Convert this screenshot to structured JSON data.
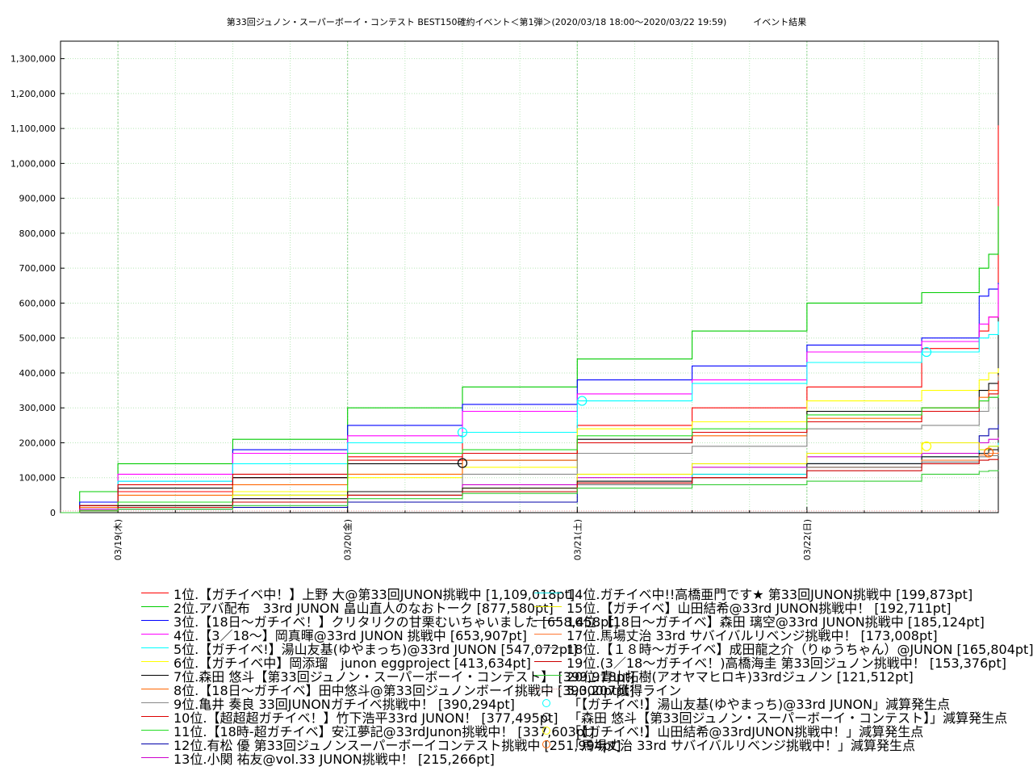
{
  "chart_data": {
    "type": "line",
    "title": "第33回ジュノン・スーパーボーイ・コンテスト BEST150確約イベント＜第1弾＞(2020/03/18 18:00〜2020/03/22 19:59)　　　イベント結果",
    "xlabel": "",
    "ylabel": "",
    "x_range": [
      "2020-03-18 18:00",
      "2020-03-22 20:00"
    ],
    "ylim": [
      0,
      1350000
    ],
    "yticks": [
      0,
      100000,
      200000,
      300000,
      400000,
      500000,
      600000,
      700000,
      800000,
      900000,
      1000000,
      1100000,
      1200000,
      1300000
    ],
    "ytick_labels": [
      "0",
      "100,000",
      "200,000",
      "300,000",
      "400,000",
      "500,000",
      "600,000",
      "700,000",
      "800,000",
      "900,000",
      "1,000,000",
      "1,100,000",
      "1,200,000",
      "1,300,000"
    ],
    "xticks": [
      {
        "x": "2020-03-19 00:00",
        "label": "03/19(木)"
      },
      {
        "x": "2020-03-20 00:00",
        "label": "03/20(金)"
      },
      {
        "x": "2020-03-21 00:00",
        "label": "03/21(土)"
      },
      {
        "x": "2020-03-22 00:00",
        "label": "03/22(日)"
      }
    ],
    "grid": true,
    "legend_position": "bottom",
    "series": [
      {
        "name": "1位.【ガチイベ中！】上野 大@第33回JUNON挑戦中 [1,109,018pt]",
        "color": "#ff0000",
        "x": [
          "2020-03-18 18:00",
          "2020-03-18 20:00",
          "2020-03-19 00:00",
          "2020-03-19 12:00",
          "2020-03-20 00:00",
          "2020-03-20 12:00",
          "2020-03-21 00:00",
          "2020-03-21 12:00",
          "2020-03-22 00:00",
          "2020-03-22 12:00",
          "2020-03-22 18:00",
          "2020-03-22 19:00",
          "2020-03-22 20:00"
        ],
        "y": [
          0,
          20000,
          60000,
          100000,
          160000,
          230000,
          250000,
          300000,
          360000,
          470000,
          520000,
          560000,
          1109018
        ]
      },
      {
        "name": "2位.アバ配布　33rd JUNON 畠山直人のなおトーク [877,580pt]",
        "color": "#00cc00",
        "x": [
          "2020-03-18 18:00",
          "2020-03-18 20:00",
          "2020-03-19 00:00",
          "2020-03-19 12:00",
          "2020-03-20 00:00",
          "2020-03-20 12:00",
          "2020-03-21 00:00",
          "2020-03-21 12:00",
          "2020-03-22 00:00",
          "2020-03-22 12:00",
          "2020-03-22 18:00",
          "2020-03-22 19:00",
          "2020-03-22 20:00"
        ],
        "y": [
          0,
          60000,
          140000,
          210000,
          300000,
          360000,
          440000,
          520000,
          600000,
          630000,
          700000,
          740000,
          877580
        ]
      },
      {
        "name": "3位.【18日〜ガチイベ！】クリタリクの甘栗むいちゃいました [658,458pt]",
        "color": "#0000ff",
        "x": [
          "2020-03-18 18:00",
          "2020-03-18 20:00",
          "2020-03-19 00:00",
          "2020-03-19 12:00",
          "2020-03-20 00:00",
          "2020-03-20 12:00",
          "2020-03-21 00:00",
          "2020-03-21 12:00",
          "2020-03-22 00:00",
          "2020-03-22 12:00",
          "2020-03-22 18:00",
          "2020-03-22 19:00",
          "2020-03-22 20:00"
        ],
        "y": [
          0,
          30000,
          90000,
          180000,
          250000,
          310000,
          380000,
          420000,
          480000,
          500000,
          620000,
          640000,
          658458
        ]
      },
      {
        "name": "4位.【3／18〜】岡真暉@33rd JUNON 挑戦中 [653,907pt]",
        "color": "#ff00ff",
        "x": [
          "2020-03-18 18:00",
          "2020-03-18 20:00",
          "2020-03-19 00:00",
          "2020-03-19 12:00",
          "2020-03-20 00:00",
          "2020-03-20 12:00",
          "2020-03-21 00:00",
          "2020-03-21 12:00",
          "2020-03-22 00:00",
          "2020-03-22 12:00",
          "2020-03-22 18:00",
          "2020-03-22 19:00",
          "2020-03-22 20:00"
        ],
        "y": [
          0,
          20000,
          110000,
          170000,
          220000,
          290000,
          340000,
          380000,
          460000,
          490000,
          540000,
          560000,
          653907
        ]
      },
      {
        "name": "5位.【ガチイベ!】湯山友基(ゆやまっち)@33rd JUNON [547,072pt]",
        "color": "#00ffff",
        "x": [
          "2020-03-18 18:00",
          "2020-03-18 20:00",
          "2020-03-19 00:00",
          "2020-03-19 12:00",
          "2020-03-20 00:00",
          "2020-03-20 12:00",
          "2020-03-21 00:00",
          "2020-03-21 12:00",
          "2020-03-22 00:00",
          "2020-03-22 12:00",
          "2020-03-22 18:00",
          "2020-03-22 19:00",
          "2020-03-22 20:00"
        ],
        "y": [
          0,
          20000,
          90000,
          140000,
          200000,
          230000,
          320000,
          370000,
          430000,
          460000,
          500000,
          510000,
          547072
        ]
      },
      {
        "name": "6位.【ガチイベ中】岡添瑠　junon eggproject [413,634pt]",
        "color": "#ffff00",
        "x": [
          "2020-03-18 18:00",
          "2020-03-18 20:00",
          "2020-03-19 00:00",
          "2020-03-19 12:00",
          "2020-03-20 00:00",
          "2020-03-20 12:00",
          "2020-03-21 00:00",
          "2020-03-21 12:00",
          "2020-03-22 00:00",
          "2020-03-22 12:00",
          "2020-03-22 18:00",
          "2020-03-22 19:00",
          "2020-03-22 20:00"
        ],
        "y": [
          0,
          10000,
          30000,
          60000,
          100000,
          130000,
          240000,
          260000,
          320000,
          350000,
          380000,
          400000,
          413634
        ]
      },
      {
        "name": "7位.森田 悠斗【第33回ジュノン・スーパーボーイ・コンテスト】 [399,918pt]",
        "color": "#000000",
        "x": [
          "2020-03-18 18:00",
          "2020-03-18 20:00",
          "2020-03-19 00:00",
          "2020-03-19 12:00",
          "2020-03-20 00:00",
          "2020-03-20 12:00",
          "2020-03-21 00:00",
          "2020-03-21 12:00",
          "2020-03-22 00:00",
          "2020-03-22 12:00",
          "2020-03-22 18:00",
          "2020-03-22 19:00",
          "2020-03-22 20:00"
        ],
        "y": [
          0,
          20000,
          70000,
          100000,
          140000,
          150000,
          210000,
          230000,
          290000,
          300000,
          350000,
          370000,
          399918
        ]
      },
      {
        "name": "8位.【18日〜ガチイベ】田中悠斗@第33回ジュノンボーイ挑戦中 [393,207pt]",
        "color": "#ff6600",
        "x": [
          "2020-03-18 18:00",
          "2020-03-18 20:00",
          "2020-03-19 00:00",
          "2020-03-19 12:00",
          "2020-03-20 00:00",
          "2020-03-20 12:00",
          "2020-03-21 00:00",
          "2020-03-21 12:00",
          "2020-03-22 00:00",
          "2020-03-22 12:00",
          "2020-03-22 18:00",
          "2020-03-22 19:00",
          "2020-03-22 20:00"
        ],
        "y": [
          0,
          15000,
          50000,
          80000,
          110000,
          150000,
          200000,
          220000,
          270000,
          300000,
          330000,
          350000,
          393207
        ]
      },
      {
        "name": "9位.亀井 奏良 33回JUNONガチイベ挑戦中！ [390,294pt]",
        "color": "#888888",
        "x": [
          "2020-03-18 18:00",
          "2020-03-18 20:00",
          "2020-03-19 00:00",
          "2020-03-19 12:00",
          "2020-03-20 00:00",
          "2020-03-20 12:00",
          "2020-03-21 00:00",
          "2020-03-21 12:00",
          "2020-03-22 00:00",
          "2020-03-22 12:00",
          "2020-03-22 18:00",
          "2020-03-22 19:00",
          "2020-03-22 20:00"
        ],
        "y": [
          0,
          10000,
          30000,
          50000,
          60000,
          110000,
          170000,
          190000,
          240000,
          250000,
          290000,
          330000,
          390294
        ]
      },
      {
        "name": "10位.【超超超ガチイベ！】竹下浩平33rd JUNON！ [377,495pt]",
        "color": "#dd0000",
        "x": [
          "2020-03-18 18:00",
          "2020-03-18 20:00",
          "2020-03-19 00:00",
          "2020-03-19 12:00",
          "2020-03-20 00:00",
          "2020-03-20 12:00",
          "2020-03-21 00:00",
          "2020-03-21 12:00",
          "2020-03-22 00:00",
          "2020-03-22 12:00",
          "2020-03-22 18:00",
          "2020-03-22 19:00",
          "2020-03-22 20:00"
        ],
        "y": [
          0,
          20000,
          80000,
          110000,
          150000,
          170000,
          200000,
          230000,
          260000,
          290000,
          320000,
          340000,
          377495
        ]
      },
      {
        "name": "11位.【18時-超ガチイベ】安江夢記@33rdJunon挑戦中！ [337,603pt]",
        "color": "#22dd22",
        "x": [
          "2020-03-18 18:00",
          "2020-03-18 20:00",
          "2020-03-19 00:00",
          "2020-03-19 12:00",
          "2020-03-20 00:00",
          "2020-03-20 12:00",
          "2020-03-21 00:00",
          "2020-03-21 12:00",
          "2020-03-22 00:00",
          "2020-03-22 12:00",
          "2020-03-22 18:00",
          "2020-03-22 19:00",
          "2020-03-22 20:00"
        ],
        "y": [
          0,
          10000,
          30000,
          50000,
          170000,
          180000,
          220000,
          240000,
          280000,
          300000,
          320000,
          330000,
          337603
        ]
      },
      {
        "name": "12位.有松 優 第33回ジュノンスーパーボーイコンテスト挑戦中 [251,994pt]",
        "color": "#0000aa",
        "x": [
          "2020-03-18 18:00",
          "2020-03-18 20:00",
          "2020-03-19 00:00",
          "2020-03-19 12:00",
          "2020-03-20 00:00",
          "2020-03-20 12:00",
          "2020-03-21 00:00",
          "2020-03-21 12:00",
          "2020-03-22 00:00",
          "2020-03-22 12:00",
          "2020-03-22 18:00",
          "2020-03-22 19:00",
          "2020-03-22 20:00"
        ],
        "y": [
          0,
          5000,
          10000,
          15000,
          30000,
          30000,
          80000,
          100000,
          140000,
          170000,
          220000,
          240000,
          251994
        ]
      },
      {
        "name": "13位.小関 祐友@vol.33 JUNON挑戦中！ [215,266pt]",
        "color": "#cc00cc",
        "x": [
          "2020-03-18 18:00",
          "2020-03-18 20:00",
          "2020-03-19 00:00",
          "2020-03-19 12:00",
          "2020-03-20 00:00",
          "2020-03-20 12:00",
          "2020-03-21 00:00",
          "2020-03-21 12:00",
          "2020-03-22 00:00",
          "2020-03-22 12:00",
          "2020-03-22 18:00",
          "2020-03-22 19:00",
          "2020-03-22 20:00"
        ],
        "y": [
          0,
          10000,
          20000,
          40000,
          60000,
          80000,
          100000,
          130000,
          160000,
          170000,
          200000,
          210000,
          215266
        ]
      },
      {
        "name": "14位.ガチイベ中!!高橋亜門です★ 第33回JUNON挑戦中 [199,873pt]",
        "color": "#00dddd",
        "x": [
          "2020-03-18 18:00",
          "2020-03-18 20:00",
          "2020-03-19 00:00",
          "2020-03-19 12:00",
          "2020-03-20 00:00",
          "2020-03-20 12:00",
          "2020-03-21 00:00",
          "2020-03-21 12:00",
          "2020-03-22 00:00",
          "2020-03-22 12:00",
          "2020-03-22 18:00",
          "2020-03-22 19:00",
          "2020-03-22 20:00"
        ],
        "y": [
          0,
          5000,
          15000,
          30000,
          50000,
          60000,
          90000,
          110000,
          140000,
          160000,
          180000,
          190000,
          199873
        ]
      },
      {
        "name": "15位.【ガチイベ】山田結希@33rd JUNON挑戦中！ [192,711pt]",
        "color": "#eeee00",
        "x": [
          "2020-03-18 18:00",
          "2020-03-18 20:00",
          "2020-03-19 00:00",
          "2020-03-19 12:00",
          "2020-03-20 00:00",
          "2020-03-20 12:00",
          "2020-03-21 00:00",
          "2020-03-21 12:00",
          "2020-03-22 00:00",
          "2020-03-22 12:00",
          "2020-03-22 18:00",
          "2020-03-22 19:00",
          "2020-03-22 20:00"
        ],
        "y": [
          0,
          5000,
          20000,
          50000,
          60000,
          70000,
          110000,
          140000,
          170000,
          200000,
          180000,
          190000,
          192711
        ]
      },
      {
        "name": "16位.【18日〜ガチイベ】森田 璃空@33rd JUNON挑戦中 [185,124pt]",
        "color": "#111111",
        "x": [
          "2020-03-18 18:00",
          "2020-03-18 20:00",
          "2020-03-19 00:00",
          "2020-03-19 12:00",
          "2020-03-20 00:00",
          "2020-03-20 12:00",
          "2020-03-21 00:00",
          "2020-03-21 12:00",
          "2020-03-22 00:00",
          "2020-03-22 12:00",
          "2020-03-22 18:00",
          "2020-03-22 19:00",
          "2020-03-22 20:00"
        ],
        "y": [
          0,
          5000,
          20000,
          40000,
          60000,
          70000,
          90000,
          100000,
          140000,
          160000,
          170000,
          180000,
          185124
        ]
      },
      {
        "name": "17位.馬場丈治 33rd サバイバルリベンジ挑戦中！ [173,008pt]",
        "color": "#ff7733",
        "x": [
          "2020-03-18 18:00",
          "2020-03-18 20:00",
          "2020-03-19 00:00",
          "2020-03-19 12:00",
          "2020-03-20 00:00",
          "2020-03-20 12:00",
          "2020-03-21 00:00",
          "2020-03-21 12:00",
          "2020-03-22 00:00",
          "2020-03-22 12:00",
          "2020-03-22 18:00",
          "2020-03-22 19:00",
          "2020-03-22 20:00"
        ],
        "y": [
          0,
          5000,
          15000,
          30000,
          50000,
          60000,
          80000,
          100000,
          130000,
          150000,
          165000,
          170000,
          173008
        ]
      },
      {
        "name": "18位.【１８時〜ガチイベ】成田龍之介（りゅうちゃん）@JUNON [165,804pt]",
        "color": "#777777",
        "x": [
          "2020-03-18 18:00",
          "2020-03-18 20:00",
          "2020-03-19 00:00",
          "2020-03-19 12:00",
          "2020-03-20 00:00",
          "2020-03-20 12:00",
          "2020-03-21 00:00",
          "2020-03-21 12:00",
          "2020-03-22 00:00",
          "2020-03-22 12:00",
          "2020-03-22 18:00",
          "2020-03-22 19:00",
          "2020-03-22 20:00"
        ],
        "y": [
          0,
          5000,
          10000,
          30000,
          50000,
          60000,
          80000,
          100000,
          130000,
          145000,
          160000,
          163000,
          165804
        ]
      },
      {
        "name": "19位.(3／18〜ガチイベ！)高橋海圭 第33回ジュノン挑戦中！ [153,376pt]",
        "color": "#cc0000",
        "x": [
          "2020-03-18 18:00",
          "2020-03-18 20:00",
          "2020-03-19 00:00",
          "2020-03-19 12:00",
          "2020-03-20 00:00",
          "2020-03-20 12:00",
          "2020-03-21 00:00",
          "2020-03-21 12:00",
          "2020-03-22 00:00",
          "2020-03-22 12:00",
          "2020-03-22 18:00",
          "2020-03-22 19:00",
          "2020-03-22 20:00"
        ],
        "y": [
          0,
          5000,
          15000,
          30000,
          50000,
          60000,
          85000,
          100000,
          120000,
          140000,
          150000,
          152000,
          153376
        ]
      },
      {
        "name": "20位.青山拓樹(アオヤマヒロキ)33rdジュノン [121,512pt]",
        "color": "#33cc33",
        "x": [
          "2020-03-18 18:00",
          "2020-03-18 20:00",
          "2020-03-19 00:00",
          "2020-03-19 12:00",
          "2020-03-20 00:00",
          "2020-03-20 12:00",
          "2020-03-21 00:00",
          "2020-03-21 12:00",
          "2020-03-22 00:00",
          "2020-03-22 12:00",
          "2020-03-22 18:00",
          "2020-03-22 19:00",
          "2020-03-22 20:00"
        ],
        "y": [
          0,
          5000,
          10000,
          20000,
          40000,
          55000,
          70000,
          80000,
          90000,
          110000,
          118000,
          120000,
          121512
        ]
      }
    ],
    "reference_line": {
      "name": "5,000pt獲得ライン",
      "color": "#f4a0a0",
      "y": 5000
    },
    "markers": [
      {
        "name": "「【ガチイベ!】湯山友基(ゆやまっち)@33rd JUNON」減算発生点",
        "color": "#00ffff",
        "points": [
          {
            "x": "2020-03-20 12:00",
            "y": 230000
          },
          {
            "x": "2020-03-21 00:30",
            "y": 320000
          },
          {
            "x": "2020-03-22 12:30",
            "y": 460000
          }
        ]
      },
      {
        "name": "「森田 悠斗【第33回ジュノン・スーパーボーイ・コンテスト】」減算発生点",
        "color": "#000000",
        "points": [
          {
            "x": "2020-03-20 12:00",
            "y": 142000
          }
        ]
      },
      {
        "name": "「【ガチイベ!】山田結希@33rdJUNON挑戦中！」減算発生点",
        "color": "#ffff00",
        "points": [
          {
            "x": "2020-03-22 12:30",
            "y": 190000
          }
        ]
      },
      {
        "name": "「馬場丈治 33rd サバイバルリベンジ挑戦中！」減算発生点",
        "color": "#ff6600",
        "points": [
          {
            "x": "2020-03-22 19:00",
            "y": 172000
          }
        ]
      }
    ]
  }
}
